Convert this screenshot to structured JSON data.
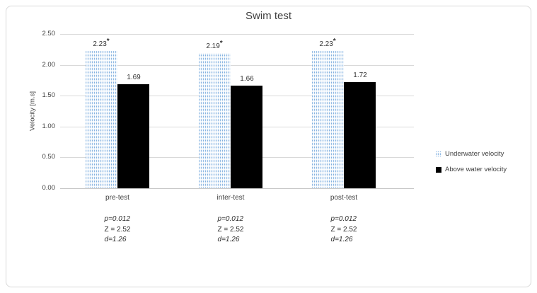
{
  "chart_data": {
    "type": "bar",
    "title": "Swim test",
    "ylabel": "Velocity [m.s]",
    "ylim": [
      0,
      2.5
    ],
    "ytick_labels": [
      "2.50",
      "2.00",
      "1.50",
      "1.00",
      "0.50",
      "0.00"
    ],
    "grid": true,
    "legend_position": "right-middle",
    "categories": [
      "pre-test",
      "inter-test",
      "post-test"
    ],
    "series": [
      {
        "name": "Underwater velocity",
        "values": [
          2.23,
          2.19,
          2.23
        ],
        "value_labels": [
          "2.23",
          "2.19",
          "2.23"
        ],
        "significance_marks": [
          "*",
          "*",
          "*"
        ],
        "fill": "light-blue dotted vertical pattern",
        "color": "#7fafdf"
      },
      {
        "name": "Above water velocity",
        "values": [
          1.69,
          1.66,
          1.72
        ],
        "value_labels": [
          "1.69",
          "1.66",
          "1.72"
        ],
        "fill": "solid",
        "color": "#000000"
      }
    ],
    "annotations": [
      {
        "category": "pre-test",
        "lines": [
          "p=0.012",
          "Z = 2.52",
          "d=1.26"
        ]
      },
      {
        "category": "inter-test",
        "lines": [
          "p=0.012",
          "Z = 2.52",
          "d=1.26"
        ]
      },
      {
        "category": "post-test",
        "lines": [
          "p=0.012",
          "Z = 2.52",
          "d=1.26"
        ]
      }
    ],
    "colors": {
      "underwater_pattern": "#7fafdf",
      "above_water": "#000000",
      "gridline": "#d9d9d9",
      "figure_border": "#d9d9d9",
      "text": "#404040"
    }
  }
}
